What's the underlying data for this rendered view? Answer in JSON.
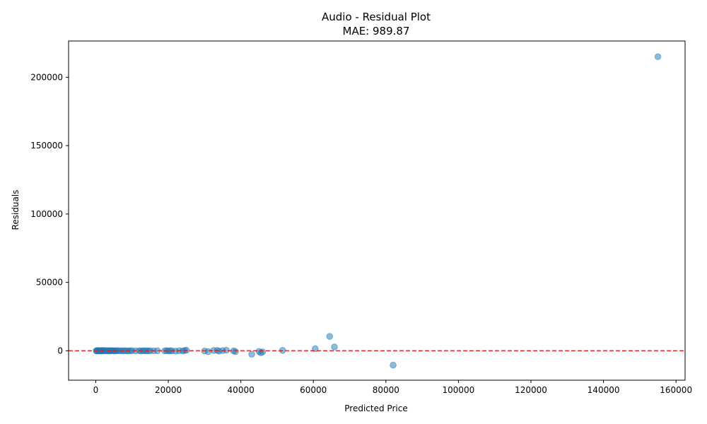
{
  "chart_data": {
    "type": "scatter",
    "title": "Audio - Residual Plot",
    "subtitle": "MAE: 989.87",
    "xlabel": "Predicted Price",
    "ylabel": "Residuals",
    "xlim": [
      -7500,
      162500
    ],
    "ylim": [
      -21500,
      226500
    ],
    "xticks": [
      0,
      20000,
      40000,
      60000,
      80000,
      100000,
      120000,
      140000,
      160000
    ],
    "yticks": [
      0,
      50000,
      100000,
      150000,
      200000
    ],
    "grid": false,
    "reference_line": {
      "y": 0,
      "color": "#d62728",
      "style": "dashed"
    },
    "point_color": "#1f77b4",
    "points": [
      [
        100,
        0
      ],
      [
        250,
        -100
      ],
      [
        400,
        150
      ],
      [
        600,
        -50
      ],
      [
        800,
        200
      ],
      [
        1000,
        -150
      ],
      [
        1200,
        100
      ],
      [
        1400,
        -200
      ],
      [
        1600,
        50
      ],
      [
        1800,
        250
      ],
      [
        2000,
        -100
      ],
      [
        2300,
        150
      ],
      [
        2600,
        -50
      ],
      [
        2900,
        100
      ],
      [
        3200,
        -150
      ],
      [
        3500,
        200
      ],
      [
        3800,
        -80
      ],
      [
        4100,
        120
      ],
      [
        4400,
        -60
      ],
      [
        4700,
        90
      ],
      [
        5000,
        -120
      ],
      [
        5300,
        60
      ],
      [
        5600,
        -40
      ],
      [
        6000,
        150
      ],
      [
        6500,
        -100
      ],
      [
        7000,
        80
      ],
      [
        7500,
        -60
      ],
      [
        8000,
        120
      ],
      [
        8500,
        -90
      ],
      [
        9000,
        50
      ],
      [
        9500,
        -30
      ],
      [
        10000,
        100
      ],
      [
        11000,
        -70
      ],
      [
        12000,
        60
      ],
      [
        12500,
        -120
      ],
      [
        13000,
        90
      ],
      [
        13500,
        -50
      ],
      [
        14000,
        40
      ],
      [
        14500,
        -80
      ],
      [
        15000,
        70
      ],
      [
        16000,
        -40
      ],
      [
        17000,
        30
      ],
      [
        19000,
        -100
      ],
      [
        19500,
        150
      ],
      [
        20000,
        -200
      ],
      [
        20500,
        100
      ],
      [
        21000,
        -60
      ],
      [
        22000,
        -300
      ],
      [
        23000,
        50
      ],
      [
        24000,
        -150
      ],
      [
        24500,
        250
      ],
      [
        25000,
        400
      ],
      [
        30000,
        -150
      ],
      [
        31000,
        -600
      ],
      [
        32500,
        250
      ],
      [
        33500,
        300
      ],
      [
        34000,
        -250
      ],
      [
        35000,
        150
      ],
      [
        36000,
        450
      ],
      [
        38000,
        -100
      ],
      [
        38500,
        -600
      ],
      [
        43000,
        -2500
      ],
      [
        45000,
        -500
      ],
      [
        45500,
        -1500
      ],
      [
        46000,
        -800
      ],
      [
        51500,
        300
      ],
      [
        60500,
        1500
      ],
      [
        64500,
        10500
      ],
      [
        65800,
        2800
      ],
      [
        82000,
        -10500
      ],
      [
        155000,
        215000
      ]
    ]
  }
}
